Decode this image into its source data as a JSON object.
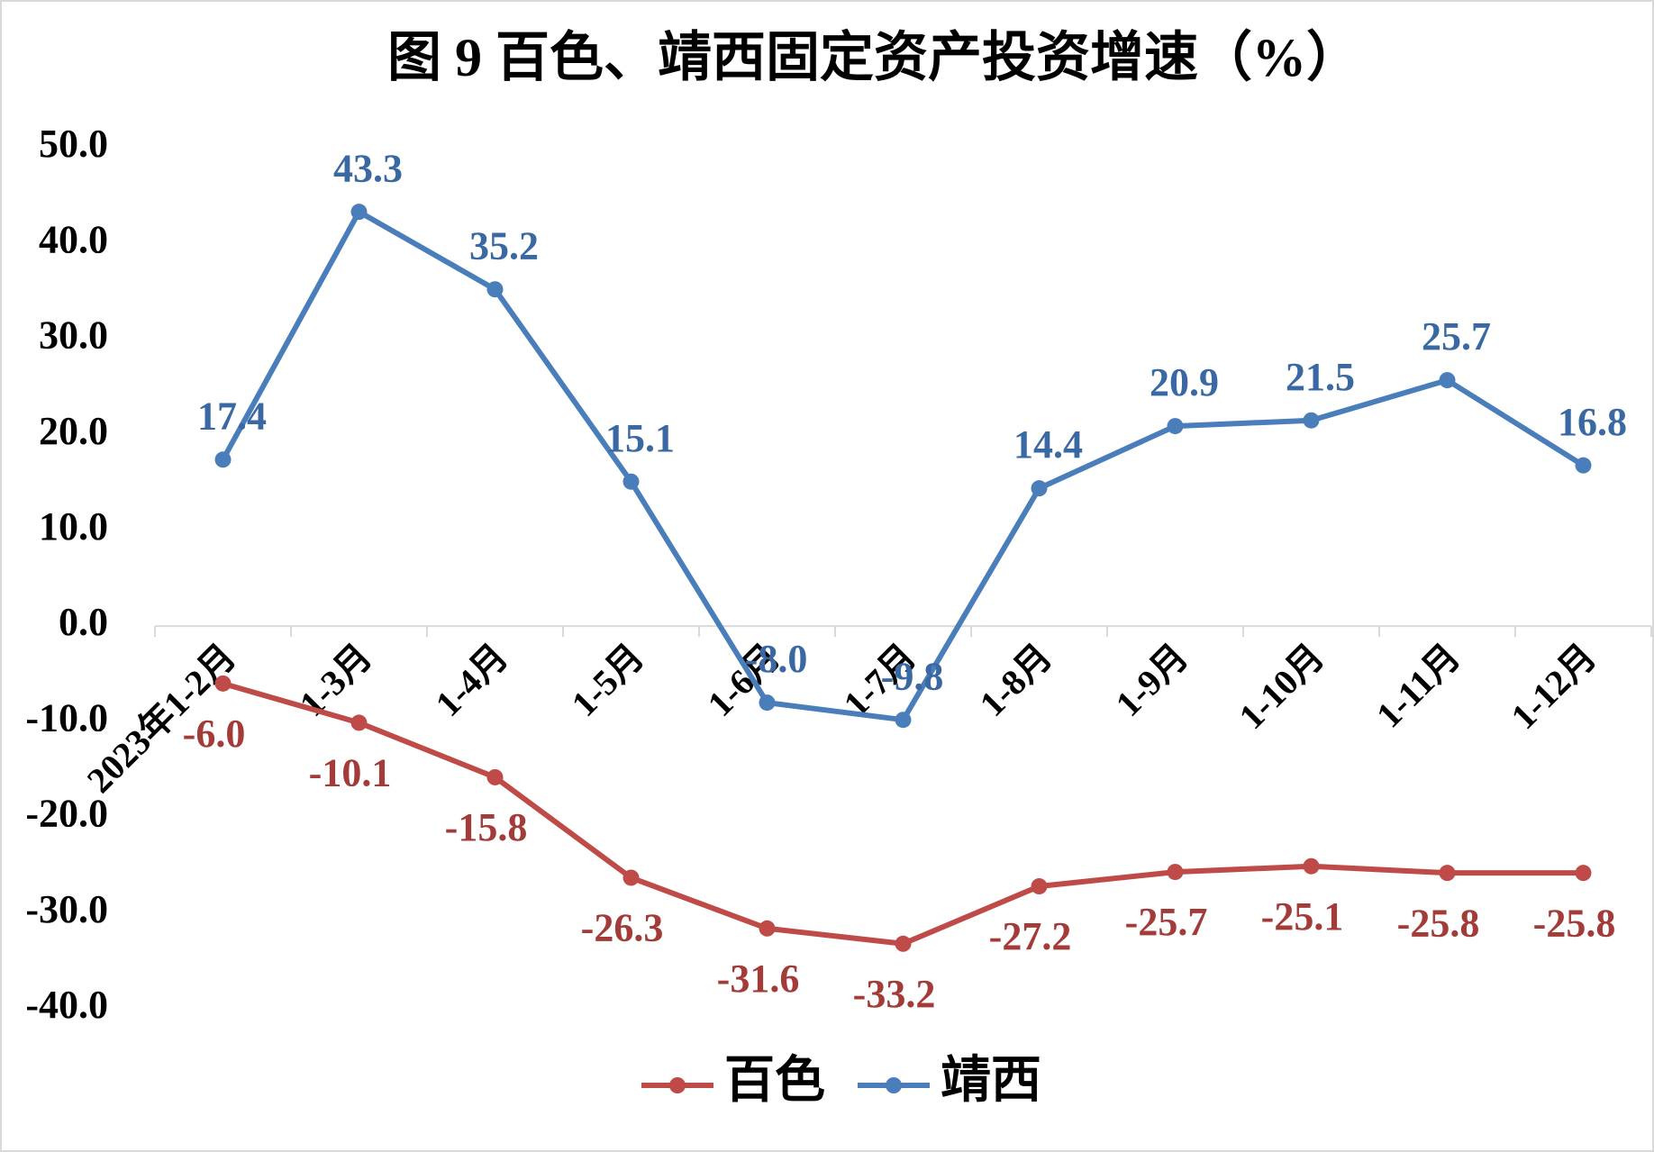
{
  "chart_data": {
    "type": "line",
    "title": "图 9  百色、靖西固定资产投资增速（%）",
    "categories": [
      "2023年1-2月",
      "1-3月",
      "1-4月",
      "1-5月",
      "1-6月",
      "1-7月",
      "1-8月",
      "1-9月",
      "1-10月",
      "1-11月",
      "1-12月"
    ],
    "series": [
      {
        "name": "百色",
        "color": "#be4b48",
        "label_color": "#a33b38",
        "values": [
          -6.0,
          -10.1,
          -15.8,
          -26.3,
          -31.6,
          -33.2,
          -27.2,
          -25.7,
          -25.1,
          -25.8,
          -25.8
        ],
        "value_labels": [
          "-6.0",
          "-10.1",
          "-15.8",
          "-26.3",
          "-31.6",
          "-33.2",
          "-27.2",
          "-25.7",
          "-25.1",
          "-25.8",
          "-25.8"
        ]
      },
      {
        "name": "靖西",
        "color": "#4a7ebb",
        "label_color": "#3a68a3",
        "values": [
          17.4,
          43.3,
          35.2,
          15.1,
          -8.0,
          -9.8,
          14.4,
          20.9,
          21.5,
          25.7,
          16.8
        ],
        "value_labels": [
          "17.4",
          "43.3",
          "35.2",
          "15.1",
          "-8.0",
          "-9.8",
          "14.4",
          "20.9",
          "21.5",
          "25.7",
          "16.8"
        ]
      }
    ],
    "ylim": [
      -40,
      50
    ],
    "yticks": [
      {
        "value": -40,
        "label": "-40.0"
      },
      {
        "value": -30,
        "label": "-30.0"
      },
      {
        "value": -20,
        "label": "-20.0"
      },
      {
        "value": -10,
        "label": "-10.0"
      },
      {
        "value": 0,
        "label": "0.0"
      },
      {
        "value": 10,
        "label": "10.0"
      },
      {
        "value": 20,
        "label": "20.0"
      },
      {
        "value": 30,
        "label": "30.0"
      },
      {
        "value": 40,
        "label": "40.0"
      },
      {
        "value": 50,
        "label": "50.0"
      }
    ],
    "grid": false,
    "legend": "bottom"
  }
}
